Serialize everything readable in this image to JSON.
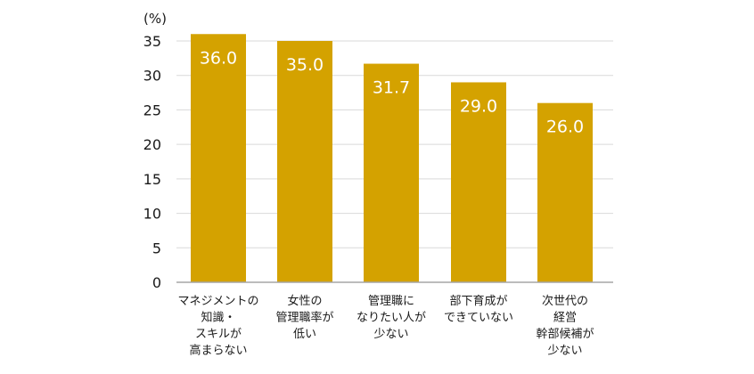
{
  "chart_data": {
    "type": "bar",
    "unit_label": "(%)",
    "categories": [
      [
        "マネジメントの",
        "知識・",
        "スキルが",
        "高まらない"
      ],
      [
        "女性の",
        "管理職率が",
        "低い"
      ],
      [
        "管理職に",
        "なりたい人が",
        "少ない"
      ],
      [
        "部下育成が",
        "できていない"
      ],
      [
        "次世代の",
        "経営",
        "幹部候補が",
        "少ない"
      ]
    ],
    "values": [
      36.0,
      35.0,
      31.7,
      29.0,
      26.0
    ],
    "value_labels": [
      "36.0",
      "35.0",
      "31.7",
      "29.0",
      "26.0"
    ],
    "ylim": [
      0,
      35
    ],
    "yticks": [
      "0",
      "5",
      "10",
      "15",
      "20",
      "25",
      "30",
      "35"
    ],
    "grid": true,
    "colors": {
      "bar": "#d4a200",
      "grid": "#d9d9d9",
      "axis": "#a6a6a6",
      "text": "#1a1a1a",
      "value_text": "#ffffff"
    }
  }
}
